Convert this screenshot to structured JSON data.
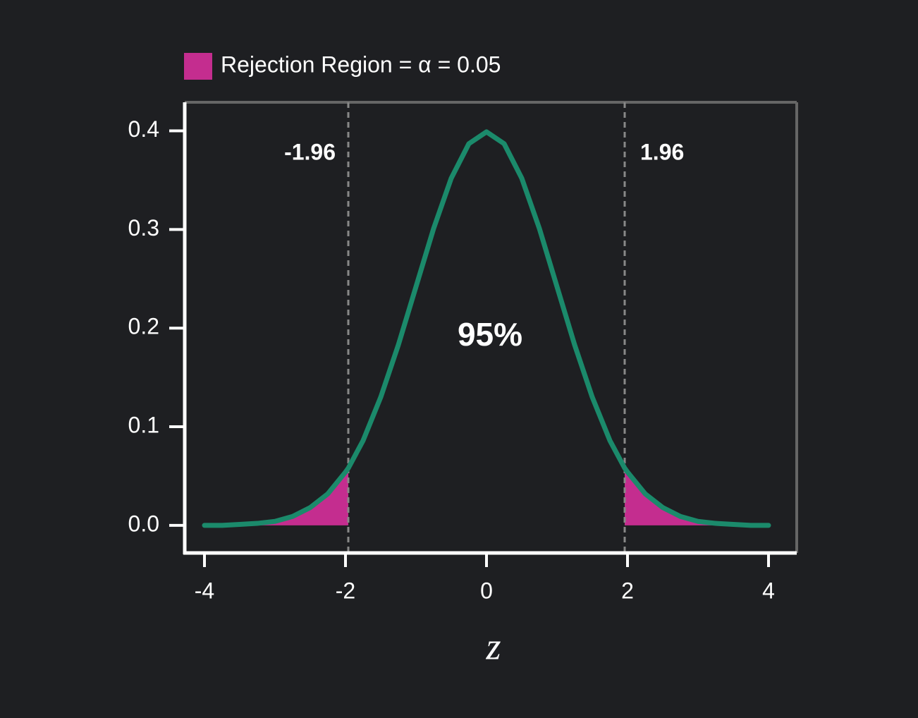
{
  "chart_data": {
    "type": "line",
    "x": [
      -4,
      -3.75,
      -3.5,
      -3.25,
      -3,
      -2.75,
      -2.5,
      -2.25,
      -2,
      -1.96,
      -1.75,
      -1.5,
      -1.25,
      -1,
      -0.75,
      -0.5,
      -0.25,
      0,
      0.25,
      0.5,
      0.75,
      1,
      1.25,
      1.5,
      1.75,
      1.96,
      2,
      2.25,
      2.5,
      2.75,
      3,
      3.25,
      3.5,
      3.75,
      4
    ],
    "series": [
      {
        "color": "#1b8a6b",
        "values": [
          0.0,
          0.0,
          0.001,
          0.002,
          0.004,
          0.009,
          0.018,
          0.032,
          0.054,
          0.058,
          0.086,
          0.13,
          0.183,
          0.242,
          0.301,
          0.352,
          0.387,
          0.399,
          0.387,
          0.352,
          0.301,
          0.242,
          0.183,
          0.13,
          0.086,
          0.058,
          0.054,
          0.032,
          0.018,
          0.009,
          0.004,
          0.002,
          0.001,
          0.0,
          0.0
        ]
      }
    ],
    "shade": {
      "name": "Rejection Region = α = 0.05",
      "color": "#c42d8f"
    },
    "thresholds": [
      -1.96,
      1.96
    ],
    "annotation": "95%",
    "x_label": "z",
    "xlim": [
      -4.28,
      4.4
    ],
    "xticks": [
      -4,
      -2,
      0,
      2,
      4
    ],
    "ylim": [
      -0.028,
      0.429
    ],
    "yticks": [
      {
        "value": 0,
        "label": "0.0"
      },
      0.1,
      0.2,
      0.3,
      0.4
    ]
  }
}
